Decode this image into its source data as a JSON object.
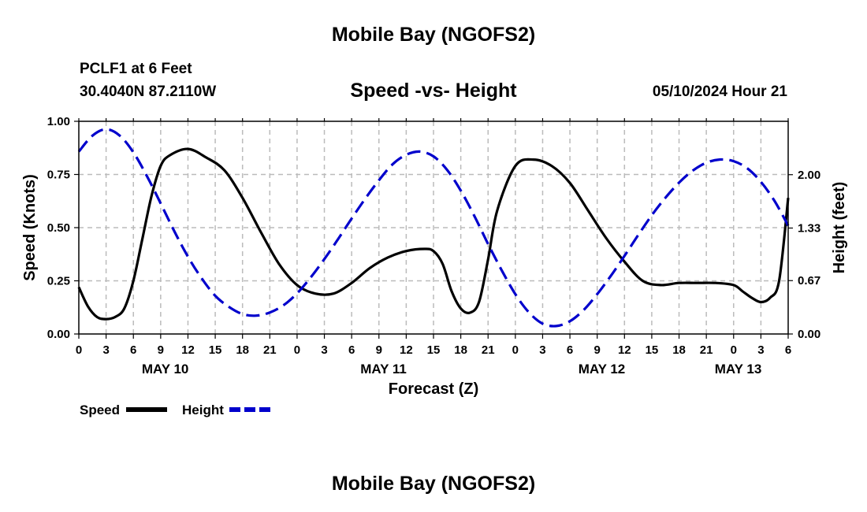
{
  "header": {
    "title": "Mobile Bay (NGOFS2)",
    "station": "PCLF1 at 6 Feet",
    "coords": "30.4040N  87.2110W",
    "subtitle": "Speed -vs- Height",
    "datetime": "05/10/2024 Hour 21"
  },
  "footer": {
    "title": "Mobile Bay (NGOFS2)"
  },
  "chart_data": {
    "type": "line",
    "xlabel": "Forecast (Z)",
    "ylabel_left": "Speed (Knots)",
    "ylabel_right": "Height (feet)",
    "x_range": [
      0,
      78
    ],
    "x_tick_step": 3,
    "x_tick_labels": [
      "0",
      "3",
      "6",
      "9",
      "12",
      "15",
      "18",
      "21",
      "0",
      "3",
      "6",
      "9",
      "12",
      "15",
      "18",
      "21",
      "0",
      "3",
      "6",
      "9",
      "12",
      "15",
      "18",
      "21",
      "0",
      "3",
      "6"
    ],
    "day_labels": [
      {
        "label": "MAY 10",
        "x": 9.5
      },
      {
        "label": "MAY 11",
        "x": 33.5
      },
      {
        "label": "MAY 12",
        "x": 57.5
      },
      {
        "label": "MAY 13",
        "x": 72.5
      }
    ],
    "ylim_left": [
      0,
      1.0
    ],
    "y_ticks_left": [
      0,
      0.25,
      0.5,
      0.75,
      1.0
    ],
    "y_tick_labels_left": [
      "0.00",
      "0.25",
      "0.50",
      "0.75",
      "1.00"
    ],
    "ylim_right": [
      0,
      2.67
    ],
    "y_ticks_right": [
      0,
      0.67,
      1.33,
      2.0
    ],
    "y_tick_labels_right": [
      "0.00",
      "0.67",
      "1.33",
      "2.00"
    ],
    "grid": true,
    "legend": [
      {
        "label": "Speed",
        "color": "#000000",
        "style": "solid"
      },
      {
        "label": "Height",
        "color": "#0000cc",
        "style": "dashed"
      }
    ],
    "series": [
      {
        "name": "Speed",
        "axis": "left",
        "color": "#000000",
        "x": [
          0,
          1,
          2,
          3,
          4,
          5,
          6,
          7,
          8,
          9,
          10,
          12,
          14,
          16,
          18,
          20,
          22,
          24,
          26,
          28,
          30,
          32,
          34,
          36,
          38,
          39,
          40,
          41,
          42,
          43,
          44,
          45,
          46,
          48,
          50,
          52,
          54,
          56,
          58,
          60,
          62,
          64,
          66,
          68,
          70,
          72,
          73,
          74,
          75,
          76,
          77,
          78
        ],
        "values": [
          0.22,
          0.13,
          0.08,
          0.07,
          0.08,
          0.12,
          0.25,
          0.45,
          0.65,
          0.79,
          0.84,
          0.87,
          0.83,
          0.77,
          0.64,
          0.48,
          0.33,
          0.23,
          0.19,
          0.19,
          0.24,
          0.31,
          0.36,
          0.39,
          0.4,
          0.39,
          0.33,
          0.2,
          0.12,
          0.1,
          0.15,
          0.35,
          0.58,
          0.79,
          0.82,
          0.79,
          0.71,
          0.58,
          0.45,
          0.34,
          0.25,
          0.23,
          0.24,
          0.24,
          0.24,
          0.23,
          0.2,
          0.17,
          0.15,
          0.17,
          0.25,
          0.64
        ]
      },
      {
        "name": "Height",
        "axis": "right",
        "color": "#0000cc",
        "x": [
          0,
          1.5,
          3,
          4.5,
          6,
          7.5,
          9,
          10.5,
          12,
          13.5,
          15,
          16.5,
          18,
          19.5,
          21,
          22.5,
          24,
          25.5,
          27,
          28.5,
          30,
          31.5,
          33,
          34.5,
          36,
          37.5,
          39,
          40.5,
          42,
          43.5,
          45,
          46.5,
          48,
          49.5,
          51,
          52.5,
          54,
          55.5,
          57,
          58.5,
          60,
          61.5,
          63,
          64.5,
          66,
          67.5,
          69,
          70.5,
          72,
          73.5,
          75,
          76.5,
          78
        ],
        "values": [
          2.29,
          2.49,
          2.57,
          2.49,
          2.28,
          1.98,
          1.64,
          1.29,
          0.97,
          0.7,
          0.48,
          0.34,
          0.25,
          0.23,
          0.27,
          0.36,
          0.51,
          0.71,
          0.94,
          1.19,
          1.45,
          1.7,
          1.93,
          2.13,
          2.25,
          2.29,
          2.23,
          2.06,
          1.8,
          1.48,
          1.13,
          0.8,
          0.5,
          0.27,
          0.13,
          0.1,
          0.16,
          0.3,
          0.5,
          0.73,
          0.98,
          1.24,
          1.49,
          1.71,
          1.9,
          2.05,
          2.15,
          2.19,
          2.17,
          2.08,
          1.91,
          1.67,
          1.36
        ]
      }
    ]
  }
}
